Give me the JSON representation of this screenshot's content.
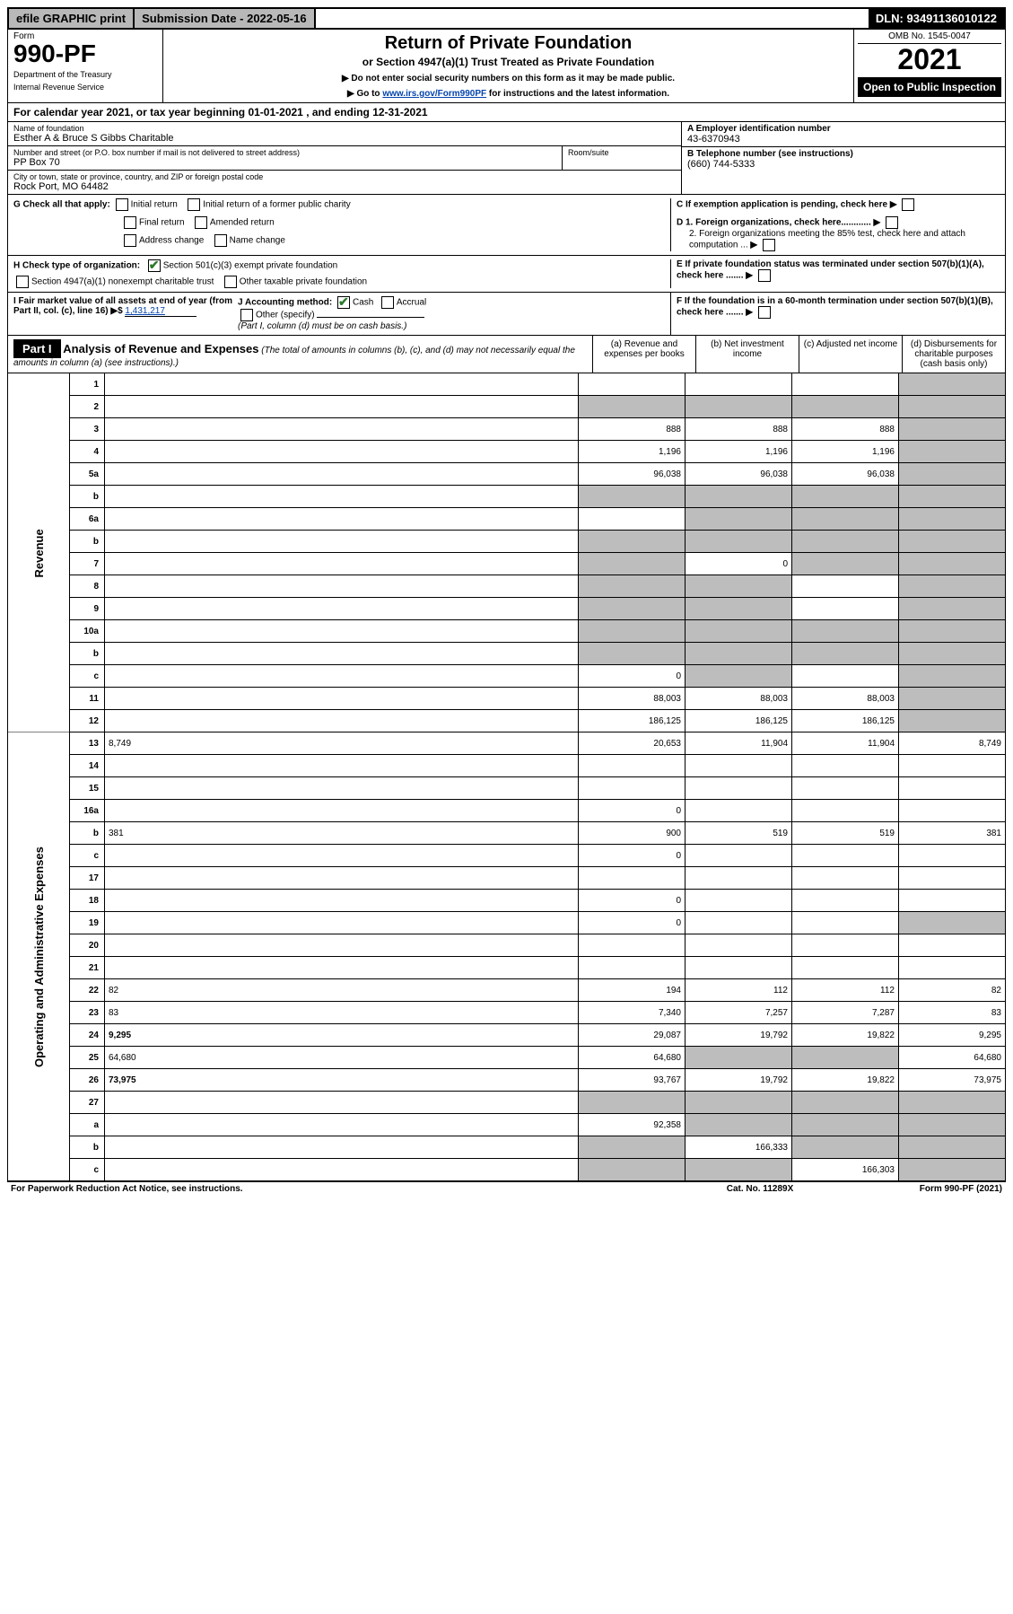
{
  "topbar": {
    "efile": "efile GRAPHIC print",
    "submission_label": "Submission Date - 2022-05-16",
    "dln": "DLN: 93491136010122"
  },
  "header": {
    "form_label": "Form",
    "form_number": "990-PF",
    "dept1": "Department of the Treasury",
    "dept2": "Internal Revenue Service",
    "title": "Return of Private Foundation",
    "subtitle": "or Section 4947(a)(1) Trust Treated as Private Foundation",
    "instr1": "▶ Do not enter social security numbers on this form as it may be made public.",
    "instr2_pre": "▶ Go to ",
    "instr2_link": "www.irs.gov/Form990PF",
    "instr2_post": " for instructions and the latest information.",
    "omb": "OMB No. 1545-0047",
    "year": "2021",
    "open": "Open to Public Inspection"
  },
  "cy": {
    "text_pre": "For calendar year 2021, or tax year beginning ",
    "begin": "01-01-2021",
    "mid": " , and ending ",
    "end": "12-31-2021"
  },
  "entity": {
    "name_label": "Name of foundation",
    "name": "Esther A & Bruce S Gibbs Charitable",
    "addr_label": "Number and street (or P.O. box number if mail is not delivered to street address)",
    "addr": "PP Box 70",
    "room_label": "Room/suite",
    "city_label": "City or town, state or province, country, and ZIP or foreign postal code",
    "city": "Rock Port, MO  64482",
    "a_label": "A Employer identification number",
    "a_val": "43-6370943",
    "b_label": "B Telephone number (see instructions)",
    "b_val": "(660) 744-5333",
    "c_label": "C If exemption application is pending, check here",
    "d1": "D 1. Foreign organizations, check here............",
    "d2": "2. Foreign organizations meeting the 85% test, check here and attach computation ...",
    "e": "E  If private foundation status was terminated under section 507(b)(1)(A), check here .......",
    "f": "F  If the foundation is in a 60-month termination under section 507(b)(1)(B), check here .......",
    "g_label": "G Check all that apply:",
    "g_opts": [
      "Initial return",
      "Initial return of a former public charity",
      "Final return",
      "Amended return",
      "Address change",
      "Name change"
    ],
    "h_label": "H Check type of organization:",
    "h1": "Section 501(c)(3) exempt private foundation",
    "h2": "Section 4947(a)(1) nonexempt charitable trust",
    "h3": "Other taxable private foundation",
    "i_label": "I Fair market value of all assets at end of year (from Part II, col. (c), line 16)",
    "i_val": "1,431,217",
    "j_label": "J Accounting method:",
    "j_cash": "Cash",
    "j_accrual": "Accrual",
    "j_other": "Other (specify)",
    "j_note": "(Part I, column (d) must be on cash basis.)"
  },
  "part1": {
    "label": "Part I",
    "title": "Analysis of Revenue and Expenses",
    "note": " (The total of amounts in columns (b), (c), and (d) may not necessarily equal the amounts in column (a) (see instructions).)",
    "col_a": "(a)   Revenue and expenses per books",
    "col_b": "(b)   Net investment income",
    "col_c": "(c)   Adjusted net income",
    "col_d": "(d)   Disbursements for charitable purposes (cash basis only)"
  },
  "side": {
    "revenue": "Revenue",
    "expenses": "Operating and Administrative Expenses"
  },
  "rows": [
    {
      "n": "1",
      "d": "",
      "a": "",
      "b": "",
      "c": "",
      "shade": [
        "d"
      ]
    },
    {
      "n": "2",
      "d": "",
      "a": "",
      "b": "",
      "c": "",
      "shade": [
        "a",
        "b",
        "c",
        "d"
      ]
    },
    {
      "n": "3",
      "d": "",
      "a": "888",
      "b": "888",
      "c": "888",
      "shade": [
        "d"
      ]
    },
    {
      "n": "4",
      "d": "",
      "a": "1,196",
      "b": "1,196",
      "c": "1,196",
      "shade": [
        "d"
      ]
    },
    {
      "n": "5a",
      "d": "",
      "a": "96,038",
      "b": "96,038",
      "c": "96,038",
      "shade": [
        "d"
      ]
    },
    {
      "n": "b",
      "d": "",
      "a": "",
      "b": "",
      "c": "",
      "shade": [
        "a",
        "b",
        "c",
        "d"
      ]
    },
    {
      "n": "6a",
      "d": "",
      "a": "",
      "b": "",
      "c": "",
      "shade": [
        "b",
        "c",
        "d"
      ]
    },
    {
      "n": "b",
      "d": "",
      "a": "",
      "b": "",
      "c": "",
      "shade": [
        "a",
        "b",
        "c",
        "d"
      ]
    },
    {
      "n": "7",
      "d": "",
      "a": "",
      "b": "0",
      "c": "",
      "shade": [
        "a",
        "c",
        "d"
      ]
    },
    {
      "n": "8",
      "d": "",
      "a": "",
      "b": "",
      "c": "",
      "shade": [
        "a",
        "b",
        "d"
      ]
    },
    {
      "n": "9",
      "d": "",
      "a": "",
      "b": "",
      "c": "",
      "shade": [
        "a",
        "b",
        "d"
      ]
    },
    {
      "n": "10a",
      "d": "",
      "a": "",
      "b": "",
      "c": "",
      "shade": [
        "a",
        "b",
        "c",
        "d"
      ]
    },
    {
      "n": "b",
      "d": "",
      "a": "",
      "b": "",
      "c": "",
      "shade": [
        "a",
        "b",
        "c",
        "d"
      ]
    },
    {
      "n": "c",
      "d": "",
      "a": "0",
      "b": "",
      "c": "",
      "shade": [
        "b",
        "d"
      ]
    },
    {
      "n": "11",
      "d": "",
      "a": "88,003",
      "b": "88,003",
      "c": "88,003",
      "shade": [
        "d"
      ]
    },
    {
      "n": "12",
      "d": "",
      "a": "186,125",
      "b": "186,125",
      "c": "186,125",
      "bold": true,
      "shade": [
        "d"
      ]
    },
    {
      "n": "13",
      "d": "8,749",
      "a": "20,653",
      "b": "11,904",
      "c": "11,904"
    },
    {
      "n": "14",
      "d": "",
      "a": "",
      "b": "",
      "c": ""
    },
    {
      "n": "15",
      "d": "",
      "a": "",
      "b": "",
      "c": ""
    },
    {
      "n": "16a",
      "d": "",
      "a": "0",
      "b": "",
      "c": ""
    },
    {
      "n": "b",
      "d": "381",
      "a": "900",
      "b": "519",
      "c": "519"
    },
    {
      "n": "c",
      "d": "",
      "a": "0",
      "b": "",
      "c": ""
    },
    {
      "n": "17",
      "d": "",
      "a": "",
      "b": "",
      "c": ""
    },
    {
      "n": "18",
      "d": "",
      "a": "0",
      "b": "",
      "c": ""
    },
    {
      "n": "19",
      "d": "",
      "a": "0",
      "b": "",
      "c": "",
      "shade": [
        "d"
      ]
    },
    {
      "n": "20",
      "d": "",
      "a": "",
      "b": "",
      "c": ""
    },
    {
      "n": "21",
      "d": "",
      "a": "",
      "b": "",
      "c": ""
    },
    {
      "n": "22",
      "d": "82",
      "a": "194",
      "b": "112",
      "c": "112"
    },
    {
      "n": "23",
      "d": "83",
      "a": "7,340",
      "b": "7,257",
      "c": "7,287"
    },
    {
      "n": "24",
      "d": "9,295",
      "a": "29,087",
      "b": "19,792",
      "c": "19,822",
      "bold": true
    },
    {
      "n": "25",
      "d": "64,680",
      "a": "64,680",
      "b": "",
      "c": "",
      "shade": [
        "b",
        "c"
      ]
    },
    {
      "n": "26",
      "d": "73,975",
      "a": "93,767",
      "b": "19,792",
      "c": "19,822",
      "bold": true
    },
    {
      "n": "27",
      "d": "",
      "a": "",
      "b": "",
      "c": "",
      "shade": [
        "a",
        "b",
        "c",
        "d"
      ]
    },
    {
      "n": "a",
      "d": "",
      "a": "92,358",
      "b": "",
      "c": "",
      "bold": true,
      "shade": [
        "b",
        "c",
        "d"
      ]
    },
    {
      "n": "b",
      "d": "",
      "a": "",
      "b": "166,333",
      "c": "",
      "bold": true,
      "shade": [
        "a",
        "c",
        "d"
      ]
    },
    {
      "n": "c",
      "d": "",
      "a": "",
      "b": "",
      "c": "166,303",
      "bold": true,
      "shade": [
        "a",
        "b",
        "d"
      ]
    }
  ],
  "footer": {
    "left": "For Paperwork Reduction Act Notice, see instructions.",
    "mid": "Cat. No. 11289X",
    "right": "Form 990-PF (2021)"
  }
}
